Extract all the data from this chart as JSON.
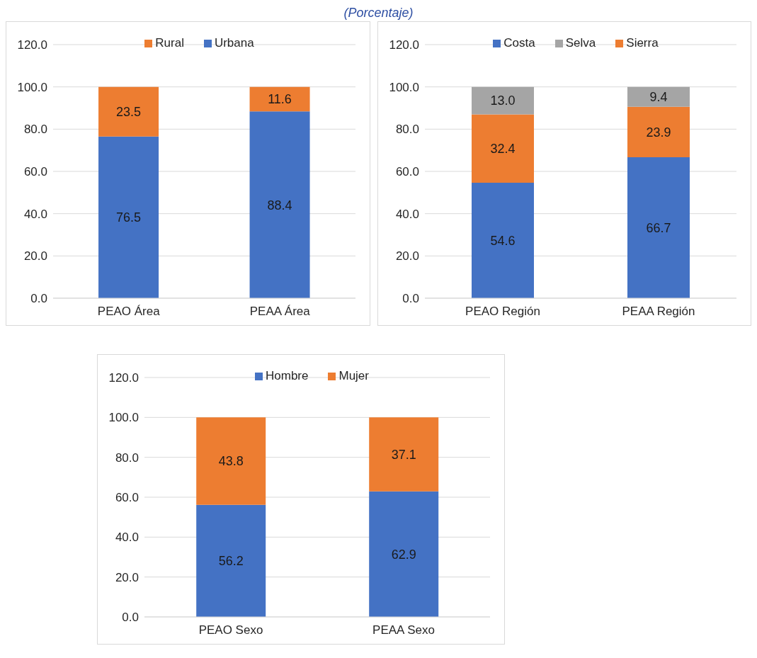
{
  "chart_data": [
    {
      "type": "bar",
      "stacked": true,
      "subtitle": "(Porcentaje)",
      "categories": [
        "PEAO Área",
        "PEAA Área"
      ],
      "ylim": [
        0,
        120
      ],
      "yticks": [
        {
          "value": 0,
          "label": "0.0"
        },
        {
          "value": 20,
          "label": "20.0"
        },
        {
          "value": 40,
          "label": "40.0"
        },
        {
          "value": 60,
          "label": "60.0"
        },
        {
          "value": 80,
          "label": "80.0"
        },
        {
          "value": 100,
          "label": "100.0"
        },
        {
          "value": 120,
          "label": "120.0"
        }
      ],
      "grid": "y",
      "legend": "top",
      "series": [
        {
          "name": "Urbana",
          "color": "#4472c4",
          "values": [
            76.5,
            88.4
          ],
          "value_labels": [
            "76.5",
            "88.4"
          ]
        },
        {
          "name": "Rural",
          "color": "#ed7d31",
          "values": [
            23.5,
            11.6
          ],
          "value_labels": [
            "23.5",
            "11.6"
          ]
        }
      ]
    },
    {
      "type": "bar",
      "stacked": true,
      "categories": [
        "PEAO Región",
        "PEAA Región"
      ],
      "ylim": [
        0,
        120
      ],
      "yticks": [
        {
          "value": 0,
          "label": "0.0"
        },
        {
          "value": 20,
          "label": "20.0"
        },
        {
          "value": 40,
          "label": "40.0"
        },
        {
          "value": 60,
          "label": "60.0"
        },
        {
          "value": 80,
          "label": "80.0"
        },
        {
          "value": 100,
          "label": "100.0"
        },
        {
          "value": 120,
          "label": "120.0"
        }
      ],
      "grid": "y",
      "legend": "top",
      "series": [
        {
          "name": "Costa",
          "color": "#4472c4",
          "values": [
            54.6,
            66.7
          ],
          "value_labels": [
            "54.6",
            "66.7"
          ]
        },
        {
          "name": "Sierra",
          "color": "#ed7d31",
          "values": [
            32.4,
            23.9
          ],
          "value_labels": [
            "32.4",
            "23.9"
          ]
        },
        {
          "name": "Selva",
          "color": "#a5a5a5",
          "values": [
            13.0,
            9.4
          ],
          "value_labels": [
            "13.0",
            "9.4"
          ]
        }
      ]
    },
    {
      "type": "bar",
      "stacked": true,
      "categories": [
        "PEAO Sexo",
        "PEAA Sexo"
      ],
      "ylim": [
        0,
        120
      ],
      "yticks": [
        {
          "value": 0,
          "label": "0.0"
        },
        {
          "value": 20,
          "label": "20.0"
        },
        {
          "value": 40,
          "label": "40.0"
        },
        {
          "value": 60,
          "label": "60.0"
        },
        {
          "value": 80,
          "label": "80.0"
        },
        {
          "value": 100,
          "label": "100.0"
        },
        {
          "value": 120,
          "label": "120.0"
        }
      ],
      "grid": "y",
      "legend": "top",
      "series": [
        {
          "name": "Hombre",
          "color": "#4472c4",
          "values": [
            56.2,
            62.9
          ],
          "value_labels": [
            "56.2",
            "62.9"
          ]
        },
        {
          "name": "Mujer",
          "color": "#ed7d31",
          "values": [
            43.8,
            37.1
          ],
          "value_labels": [
            "43.8",
            "37.1"
          ]
        }
      ]
    }
  ]
}
